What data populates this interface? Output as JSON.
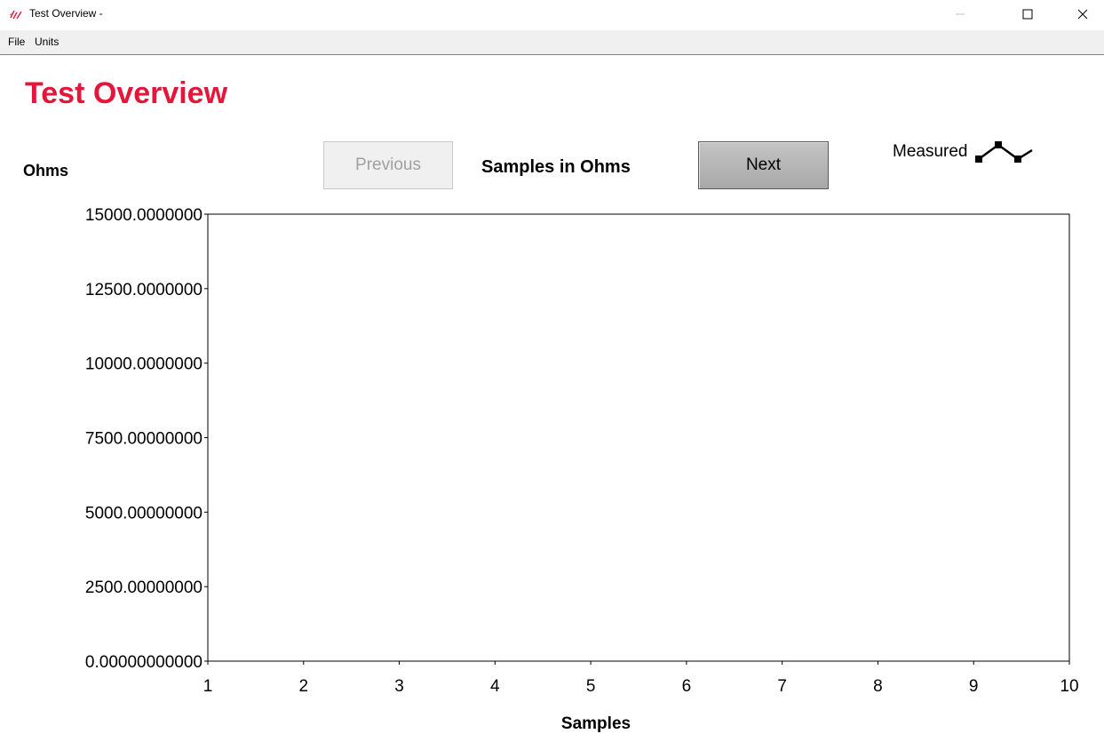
{
  "window": {
    "title": "Test Overview -",
    "controls": [
      "minimize-icon",
      "maximize-icon",
      "close-icon"
    ]
  },
  "menu": {
    "items": [
      "File",
      "Units"
    ]
  },
  "page": {
    "heading": "Test Overview",
    "heading_color": "#e6163a"
  },
  "toolbar": {
    "y_unit_label": "Ohms",
    "previous_label": "Previous",
    "previous_enabled": false,
    "caption": "Samples in Ohms",
    "next_label": "Next"
  },
  "legend": {
    "series_name": "Measured",
    "icon": "line-with-markers-icon"
  },
  "chart_data": {
    "type": "line",
    "title": "Samples in Ohms",
    "xlabel": "Samples",
    "ylabel": "Ohms",
    "xlim": [
      1,
      10
    ],
    "ylim": [
      0,
      15000
    ],
    "x_ticks": [
      1,
      2,
      3,
      4,
      5,
      6,
      7,
      8,
      9,
      10
    ],
    "x_tick_labels": [
      "1",
      "2",
      "3",
      "4",
      "5",
      "6",
      "7",
      "8",
      "9",
      "10"
    ],
    "y_ticks": [
      0,
      2500,
      5000,
      7500,
      10000,
      12500,
      15000
    ],
    "y_tick_labels": [
      "0.00000000000",
      "2500.00000000",
      "5000.00000000",
      "7500.00000000",
      "10000.0000000",
      "12500.0000000",
      "15000.0000000"
    ],
    "grid": false,
    "legend_position": "top-right",
    "series": [
      {
        "name": "Measured",
        "x": [],
        "values": []
      }
    ]
  }
}
